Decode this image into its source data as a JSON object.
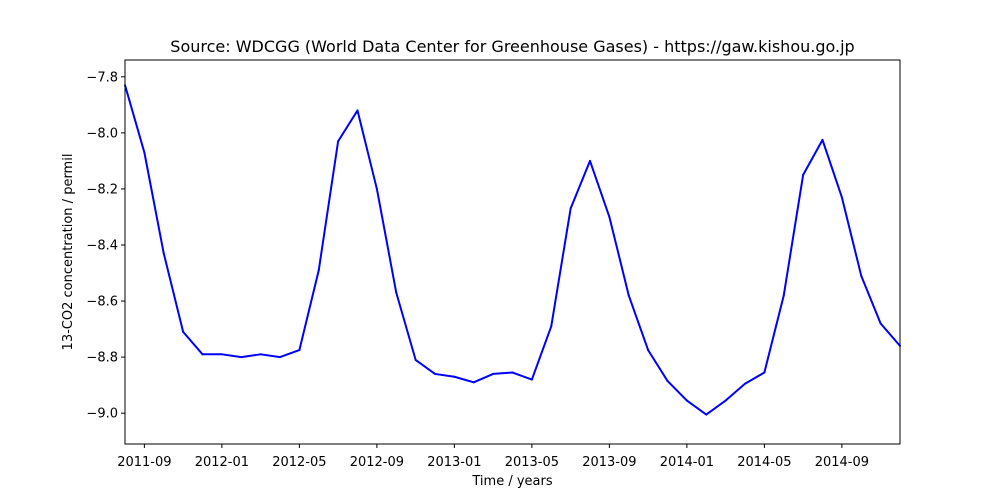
{
  "chart_data": {
    "type": "line",
    "title": "Source: WDCGG (World Data Center for Greenhouse Gases) - https://gaw.kishou.go.jp",
    "xlabel": "Time / years",
    "ylabel": "13-CO2 concentration / permil",
    "xlim": [
      "2011-08",
      "2014-12"
    ],
    "ylim": [
      -9.11,
      -7.74
    ],
    "x_ticks": [
      "2011-09",
      "2012-01",
      "2012-05",
      "2012-09",
      "2013-01",
      "2013-05",
      "2013-09",
      "2014-01",
      "2014-05",
      "2014-09"
    ],
    "y_ticks": [
      "-7.8",
      "-8.0",
      "-8.2",
      "-8.4",
      "-8.6",
      "-8.8",
      "-9.0"
    ],
    "grid": false,
    "series": [
      {
        "color": "#0000ff",
        "x": [
          "2011-08",
          "2011-09",
          "2011-10",
          "2011-11",
          "2011-12",
          "2012-01",
          "2012-02",
          "2012-03",
          "2012-04",
          "2012-05",
          "2012-06",
          "2012-07",
          "2012-08",
          "2012-09",
          "2012-10",
          "2012-11",
          "2012-12",
          "2013-01",
          "2013-02",
          "2013-03",
          "2013-04",
          "2013-05",
          "2013-06",
          "2013-07",
          "2013-08",
          "2013-09",
          "2013-10",
          "2013-11",
          "2013-12",
          "2014-01",
          "2014-02",
          "2014-03",
          "2014-04",
          "2014-05",
          "2014-06",
          "2014-07",
          "2014-08",
          "2014-09",
          "2014-10",
          "2014-11",
          "2014-12"
        ],
        "values": [
          -7.83,
          -8.07,
          -8.43,
          -8.71,
          -8.79,
          -8.79,
          -8.8,
          -8.79,
          -8.8,
          -8.775,
          -8.49,
          -8.03,
          -7.92,
          -8.2,
          -8.57,
          -8.81,
          -8.86,
          -8.87,
          -8.89,
          -8.86,
          -8.855,
          -8.88,
          -8.69,
          -8.27,
          -8.1,
          -8.3,
          -8.58,
          -8.775,
          -8.885,
          -8.955,
          -9.005,
          -8.955,
          -8.895,
          -8.855,
          -8.58,
          -8.15,
          -8.025,
          -8.23,
          -8.51,
          -8.68,
          -8.76
        ]
      }
    ]
  }
}
